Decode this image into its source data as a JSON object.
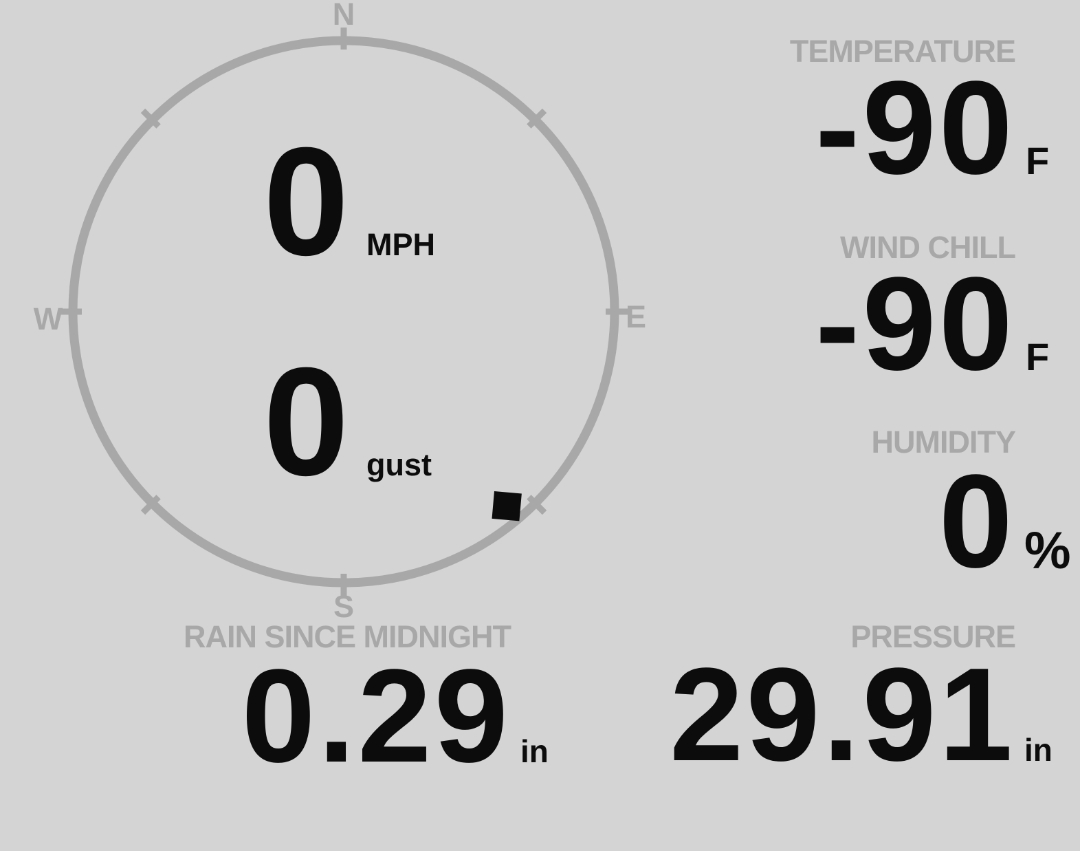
{
  "page": {
    "background_color": "#d4d4d4",
    "muted_color": "#a8a8a8",
    "value_color": "#0c0c0c"
  },
  "wind_gauge": {
    "compass": {
      "n": "N",
      "e": "E",
      "s": "S",
      "w": "W"
    },
    "speed": {
      "value": "0",
      "unit": "MPH"
    },
    "gust": {
      "value": "0",
      "unit": "gust"
    },
    "direction_deg": 140
  },
  "metrics": {
    "temperature": {
      "label": "TEMPERATURE",
      "value": "-90",
      "unit": "F"
    },
    "wind_chill": {
      "label": "WIND CHILL",
      "value": "-90",
      "unit": "F"
    },
    "humidity": {
      "label": "HUMIDITY",
      "value": "0",
      "unit": "%"
    },
    "rain": {
      "label": "RAIN SINCE MIDNIGHT",
      "value": "0.29",
      "unit": "in"
    },
    "pressure": {
      "label": "PRESSURE",
      "value": "29.91",
      "unit": "in"
    }
  }
}
